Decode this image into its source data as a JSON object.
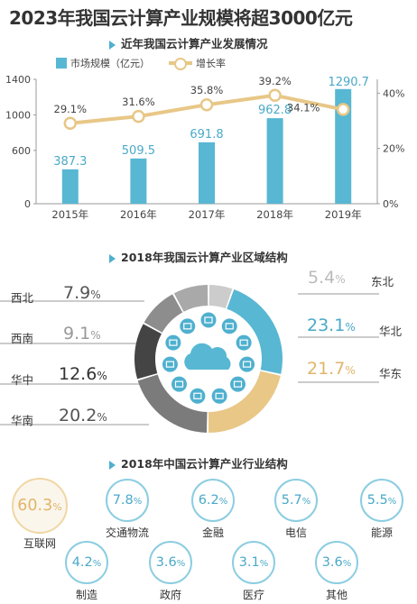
{
  "main_title": "2023年我国云计算产业规模将超3000亿元",
  "section1": {
    "title": "近年我国云计算产业发展情况"
  },
  "section2": {
    "title": "2018年我国云计算产业区域结构"
  },
  "section3": {
    "title": "2018年中国云计算产业行业结构"
  },
  "colors": {
    "bar": "#58b7d3",
    "line": "#e8c787",
    "accent": "#4aa9c8",
    "highlight": "#e0b56b",
    "dark": "#333333"
  },
  "chart_data": [
    {
      "type": "bar",
      "categories": [
        "2015年",
        "2016年",
        "2017年",
        "2018年",
        "2019年"
      ],
      "series": [
        {
          "name": "市场规模（亿元）",
          "values": [
            387.3,
            509.5,
            691.8,
            962.8,
            1290.7
          ],
          "labels": [
            "387.3",
            "509.5",
            "691.8",
            "962.8",
            "1290.7"
          ],
          "axis": "left"
        },
        {
          "name": "增长率",
          "type": "line",
          "values": [
            29.1,
            31.6,
            35.8,
            39.2,
            34.1
          ],
          "labels": [
            "29.1%",
            "31.6%",
            "35.8%",
            "39.2%",
            "34.1%"
          ],
          "axis": "right"
        }
      ],
      "ylim_left": [
        0,
        1400
      ],
      "yticks_left": [
        "0",
        "600",
        "1000",
        "1400"
      ],
      "ylim_right": [
        0,
        45
      ],
      "yticks_right": [
        "0%",
        "20%",
        "40%"
      ],
      "legend_position": "top"
    },
    {
      "type": "pie",
      "style": "donut",
      "labels": [
        "东北",
        "华北",
        "华东",
        "华南",
        "华中",
        "西南",
        "西北"
      ],
      "values": [
        5.4,
        23.1,
        21.7,
        20.2,
        12.6,
        9.1,
        7.9
      ],
      "value_labels": [
        "5.4",
        "23.1",
        "21.7",
        "20.2",
        "12.6",
        "9.1",
        "7.9"
      ],
      "unit": "%"
    },
    {
      "type": "table",
      "categories": [
        "互联网",
        "交通物流",
        "金融",
        "电信",
        "能源",
        "制造",
        "政府",
        "医疗",
        "其他"
      ],
      "values": [
        60.3,
        7.8,
        6.2,
        5.7,
        5.5,
        4.2,
        3.6,
        3.1,
        3.6
      ],
      "value_labels": [
        "60.3",
        "7.8",
        "6.2",
        "5.7",
        "5.5",
        "4.2",
        "3.6",
        "3.1",
        "3.6"
      ],
      "unit": "%"
    }
  ]
}
